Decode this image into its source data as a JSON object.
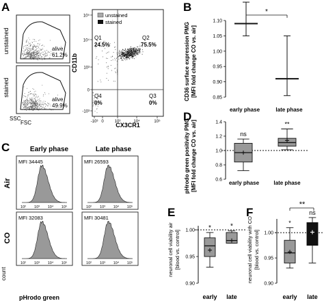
{
  "panels": {
    "A": {
      "letter": "A",
      "gating": {
        "ylabel_top": "unstained",
        "ylabel_bottom": "stained",
        "alive_label": "alive",
        "unstained_pct": "61.2%",
        "stained_pct": "49.9%",
        "x_axis": "FSC",
        "y_axis": "SSC"
      },
      "quadrant": {
        "legend": [
          "unstained",
          "stained"
        ],
        "y_axis": "CD11b",
        "x_axis": "CX3CR1",
        "q1_label": "Q1",
        "q1_value": "24.5%",
        "q2_label": "Q2",
        "q2_value": "75.5%",
        "q3_label": "Q3",
        "q3_value": "0%",
        "q4_label": "Q4",
        "q4_value": "0%",
        "y_ticks": [
          "10⁵",
          "10⁴",
          "10³",
          "0",
          "-10³"
        ],
        "x_ticks": [
          "-10³",
          "0",
          "10³",
          "10⁴",
          "10⁵"
        ]
      }
    },
    "B": {
      "letter": "B",
      "ylabel_1": "CD36 surface expression PMG",
      "ylabel_2": "[MFI fold change CO vs. air]",
      "y_ticks": [
        "1.10",
        "1.05",
        "1.00",
        "0.95",
        "0.90",
        "0.85"
      ],
      "categories": [
        "early phase",
        "late phase"
      ],
      "significance": "*"
    },
    "C": {
      "letter": "C",
      "col_headers": [
        "Early phase",
        "Late phase"
      ],
      "row_labels": [
        "Air",
        "CO"
      ],
      "mfi": [
        "MFI 34445",
        "MFI 26593",
        "MFI 32083",
        "MFI 30481"
      ],
      "y_axis": "count",
      "x_axis": "pHrodo green"
    },
    "D": {
      "letter": "D",
      "ylabel_1": "pHrodo green positivity PMG",
      "ylabel_2": "[MFI fold change CO vs. air]",
      "y_ticks": [
        "1.4",
        "1.2",
        "1.0",
        "0.8",
        "0.6"
      ],
      "categories": [
        "early phase",
        "late phase"
      ],
      "sig_early": "ns",
      "sig_late": "**"
    },
    "E": {
      "letter": "E",
      "ylabel_1": "neuronal cell viability air",
      "ylabel_2": "[blood vs. control]",
      "y_ticks": [
        "1.00",
        "0.95",
        "0.90"
      ],
      "categories": [
        "early",
        "late"
      ],
      "sig_early": "*",
      "sig_late": "*"
    },
    "F": {
      "letter": "F",
      "ylabel_1": "neuronal cell viability with CO",
      "ylabel_2": "[blood vs. control]",
      "y_ticks": [
        "1.00",
        "0.95",
        "0.90"
      ],
      "categories": [
        "early",
        "late"
      ],
      "sig_early": "*",
      "sig_late": "ns",
      "sig_between": "**"
    }
  },
  "chart_data": [
    {
      "type": "scatter",
      "panel": "B",
      "categories": [
        "early phase",
        "late phase"
      ],
      "mean": [
        1.09,
        0.91
      ],
      "err_high": [
        1.16,
        1.05
      ],
      "err_low": [
        1.05,
        0.855
      ],
      "ylim": [
        0.85,
        1.1
      ]
    },
    {
      "type": "box",
      "panel": "D",
      "categories": [
        "early phase",
        "late phase"
      ],
      "whisker_low": [
        0.72,
        1.01
      ],
      "q1": [
        0.84,
        1.06
      ],
      "median": [
        0.97,
        1.11
      ],
      "q3": [
        1.1,
        1.17
      ],
      "whisker_high": [
        1.16,
        1.3
      ],
      "mean": [
        0.97,
        1.14
      ],
      "ylim": [
        0.6,
        1.4
      ],
      "reference": 1.0
    },
    {
      "type": "box",
      "panel": "E",
      "categories": [
        "early",
        "late"
      ],
      "whisker_low": [
        0.93,
        0.975
      ],
      "q1": [
        0.95,
        0.975
      ],
      "median": [
        0.97,
        0.98
      ],
      "q3": [
        0.985,
        0.995
      ],
      "whisker_high": [
        0.995,
        0.998
      ],
      "mean": [
        0.962,
        0.98
      ],
      "ylim": [
        0.9,
        1.0
      ],
      "reference": 1.0
    },
    {
      "type": "box",
      "panel": "F",
      "categories": [
        "early",
        "late"
      ],
      "whisker_low": [
        0.93,
        0.94
      ],
      "q1": [
        0.94,
        0.975
      ],
      "median": [
        0.96,
        1.0
      ],
      "q3": [
        0.985,
        1.02
      ],
      "whisker_high": [
        1.01,
        1.03
      ],
      "mean": [
        0.962,
        1.001
      ],
      "ylim": [
        0.9,
        1.03
      ],
      "reference": 1.0
    }
  ]
}
